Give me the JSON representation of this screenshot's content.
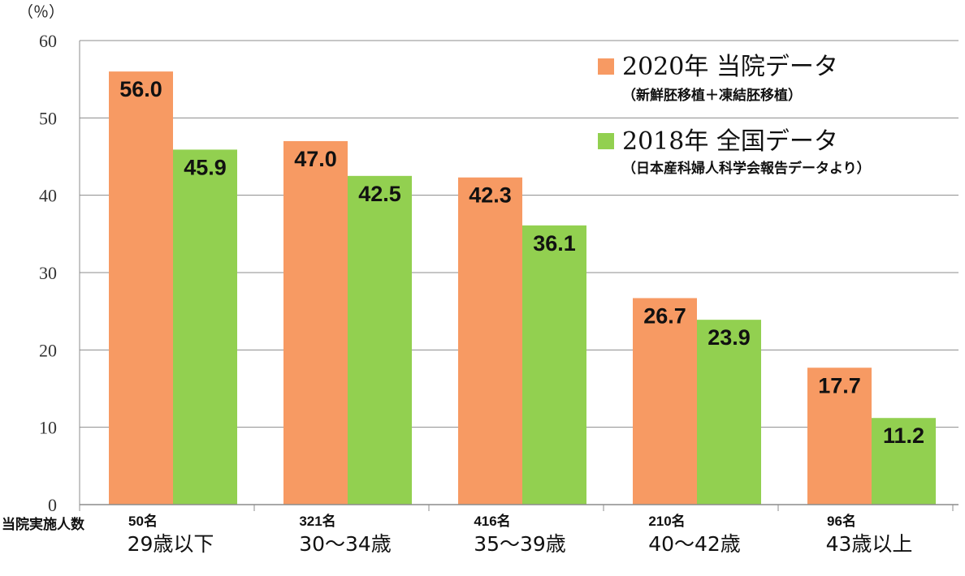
{
  "chart_data": {
    "type": "bar",
    "y_unit": "（％）",
    "ylim": [
      0,
      60
    ],
    "yticks": [
      0,
      10,
      20,
      30,
      40,
      50,
      60
    ],
    "grid": true,
    "legend_position": "top-right",
    "categories": [
      "29歳以下",
      "30〜34歳",
      "35〜39歳",
      "40〜42歳",
      "43歳以上"
    ],
    "counts_label": "当院実施人数",
    "counts": [
      "50名",
      "321名",
      "416名",
      "210名",
      "96名"
    ],
    "series": [
      {
        "name": "2020年 当院データ",
        "note": "（新鮮胚移植＋凍結胚移植）",
        "color": "#f79a63",
        "values": [
          56.0,
          47.0,
          42.3,
          26.7,
          17.7
        ],
        "labels": [
          "56.0",
          "47.0",
          "42.3",
          "26.7",
          "17.7"
        ]
      },
      {
        "name": "2018年 全国データ",
        "note": "（日本産科婦人科学会報告データより）",
        "color": "#92d050",
        "values": [
          45.9,
          42.5,
          36.1,
          23.9,
          11.2
        ],
        "labels": [
          "45.9",
          "42.5",
          "36.1",
          "23.9",
          "11.2"
        ]
      }
    ]
  }
}
